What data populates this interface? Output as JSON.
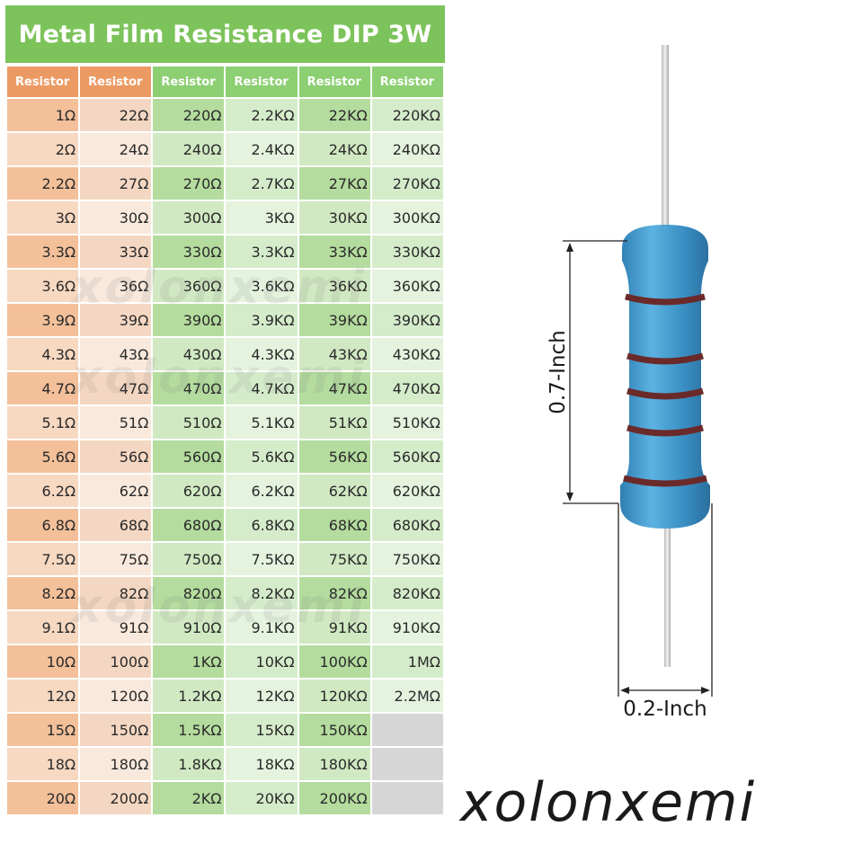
{
  "title": "Metal Film Resistance DIP 3W",
  "table": {
    "headers": [
      "Resistor",
      "Resistor",
      "Resistor",
      "Resistor",
      "Resistor",
      "Resistor"
    ],
    "rows": [
      [
        "1Ω",
        "22Ω",
        "220Ω",
        "2.2KΩ",
        "22KΩ",
        "220KΩ"
      ],
      [
        "2Ω",
        "24Ω",
        "240Ω",
        "2.4KΩ",
        "24KΩ",
        "240KΩ"
      ],
      [
        "2.2Ω",
        "27Ω",
        "270Ω",
        "2.7KΩ",
        "27KΩ",
        "270KΩ"
      ],
      [
        "3Ω",
        "30Ω",
        "300Ω",
        "3KΩ",
        "30KΩ",
        "300KΩ"
      ],
      [
        "3.3Ω",
        "33Ω",
        "330Ω",
        "3.3KΩ",
        "33KΩ",
        "330KΩ"
      ],
      [
        "3.6Ω",
        "36Ω",
        "360Ω",
        "3.6KΩ",
        "36KΩ",
        "360KΩ"
      ],
      [
        "3.9Ω",
        "39Ω",
        "390Ω",
        "3.9KΩ",
        "39KΩ",
        "390KΩ"
      ],
      [
        "4.3Ω",
        "43Ω",
        "430Ω",
        "4.3KΩ",
        "43KΩ",
        "430KΩ"
      ],
      [
        "4.7Ω",
        "47Ω",
        "470Ω",
        "4.7KΩ",
        "47KΩ",
        "470KΩ"
      ],
      [
        "5.1Ω",
        "51Ω",
        "510Ω",
        "5.1KΩ",
        "51KΩ",
        "510KΩ"
      ],
      [
        "5.6Ω",
        "56Ω",
        "560Ω",
        "5.6KΩ",
        "56KΩ",
        "560KΩ"
      ],
      [
        "6.2Ω",
        "62Ω",
        "620Ω",
        "6.2KΩ",
        "62KΩ",
        "620KΩ"
      ],
      [
        "6.8Ω",
        "68Ω",
        "680Ω",
        "6.8KΩ",
        "68KΩ",
        "680KΩ"
      ],
      [
        "7.5Ω",
        "75Ω",
        "750Ω",
        "7.5KΩ",
        "75KΩ",
        "750KΩ"
      ],
      [
        "8.2Ω",
        "82Ω",
        "820Ω",
        "8.2KΩ",
        "82KΩ",
        "820KΩ"
      ],
      [
        "9.1Ω",
        "91Ω",
        "910Ω",
        "9.1KΩ",
        "91KΩ",
        "910KΩ"
      ],
      [
        "10Ω",
        "100Ω",
        "1KΩ",
        "10KΩ",
        "100KΩ",
        "1MΩ"
      ],
      [
        "12Ω",
        "120Ω",
        "1.2KΩ",
        "12KΩ",
        "120KΩ",
        "2.2MΩ"
      ],
      [
        "15Ω",
        "150Ω",
        "1.5KΩ",
        "15KΩ",
        "150KΩ",
        ""
      ],
      [
        "18Ω",
        "180Ω",
        "1.8KΩ",
        "18KΩ",
        "180KΩ",
        ""
      ],
      [
        "20Ω",
        "200Ω",
        "2KΩ",
        "20KΩ",
        "200KΩ",
        ""
      ]
    ]
  },
  "watermark": "xolonxemi",
  "diagram": {
    "height_label": "0.7-Inch",
    "width_label": "0.2-Inch",
    "body_color": "#3a8fc4",
    "band_color": "#6b2a2a"
  },
  "brand": "xolonxemi",
  "colors": {
    "title_bg": "#7dc35b",
    "header_orange": "#ec9a63",
    "header_green": "#8dcf73",
    "empty_cell": "#d6d6d6"
  }
}
